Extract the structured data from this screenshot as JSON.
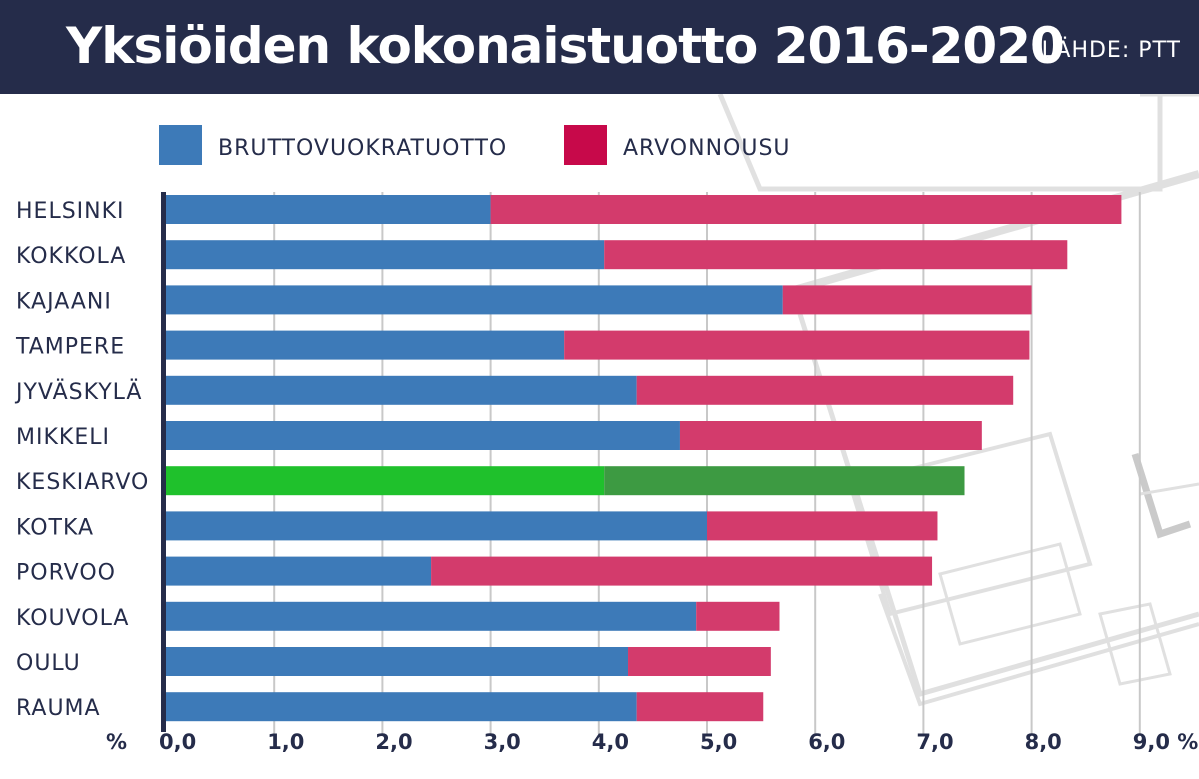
{
  "header": {
    "title": "Yksiöiden kokonaistuotto 2016-2020",
    "source": "LÄHDE: PTT"
  },
  "colors": {
    "header_bg": "#252c4a",
    "gross_rent": "#3d7ab8",
    "appreciation": "#d33b6c",
    "average_gross": "#1fc12c",
    "average_appreciation": "#3d9a42",
    "legend_appreciation": "#c7094a",
    "text": "#252c4a",
    "grid": "#c8c8c8"
  },
  "chart_data": {
    "type": "bar",
    "orientation": "horizontal",
    "stacked": true,
    "title": "Yksiöiden kokonaistuotto 2016-2020",
    "source": "LÄHDE: PTT",
    "xlabel": "%",
    "xlim": [
      0,
      9
    ],
    "xticks": [
      "0,0",
      "1,0",
      "2,0",
      "3,0",
      "4,0",
      "5,0",
      "6,0",
      "7,0",
      "8,0",
      "9,0 %"
    ],
    "unit_label": "%",
    "legend": [
      "BRUTTOVUOKRATUOTTO",
      "ARVONNOUSU"
    ],
    "legend_position": "top-left",
    "grid": true,
    "categories": [
      "HELSINKI",
      "KOKKOLA",
      "KAJAANI",
      "TAMPERE",
      "JYVÄSKYLÄ",
      "MIKKELI",
      "KESKIARVO",
      "KOTKA",
      "PORVOO",
      "KOUVOLA",
      "OULU",
      "RAUMA"
    ],
    "highlight_category": "KESKIARVO",
    "series": [
      {
        "name": "BRUTTOVUOKRATUOTTO",
        "values": [
          3.0,
          4.05,
          5.7,
          3.68,
          4.35,
          4.75,
          4.05,
          5.0,
          2.45,
          4.9,
          4.27,
          4.35
        ]
      },
      {
        "name": "ARVONNOUSU",
        "values": [
          5.83,
          4.28,
          2.3,
          4.3,
          3.48,
          2.79,
          3.33,
          2.13,
          4.63,
          0.77,
          1.32,
          1.17
        ]
      }
    ]
  }
}
